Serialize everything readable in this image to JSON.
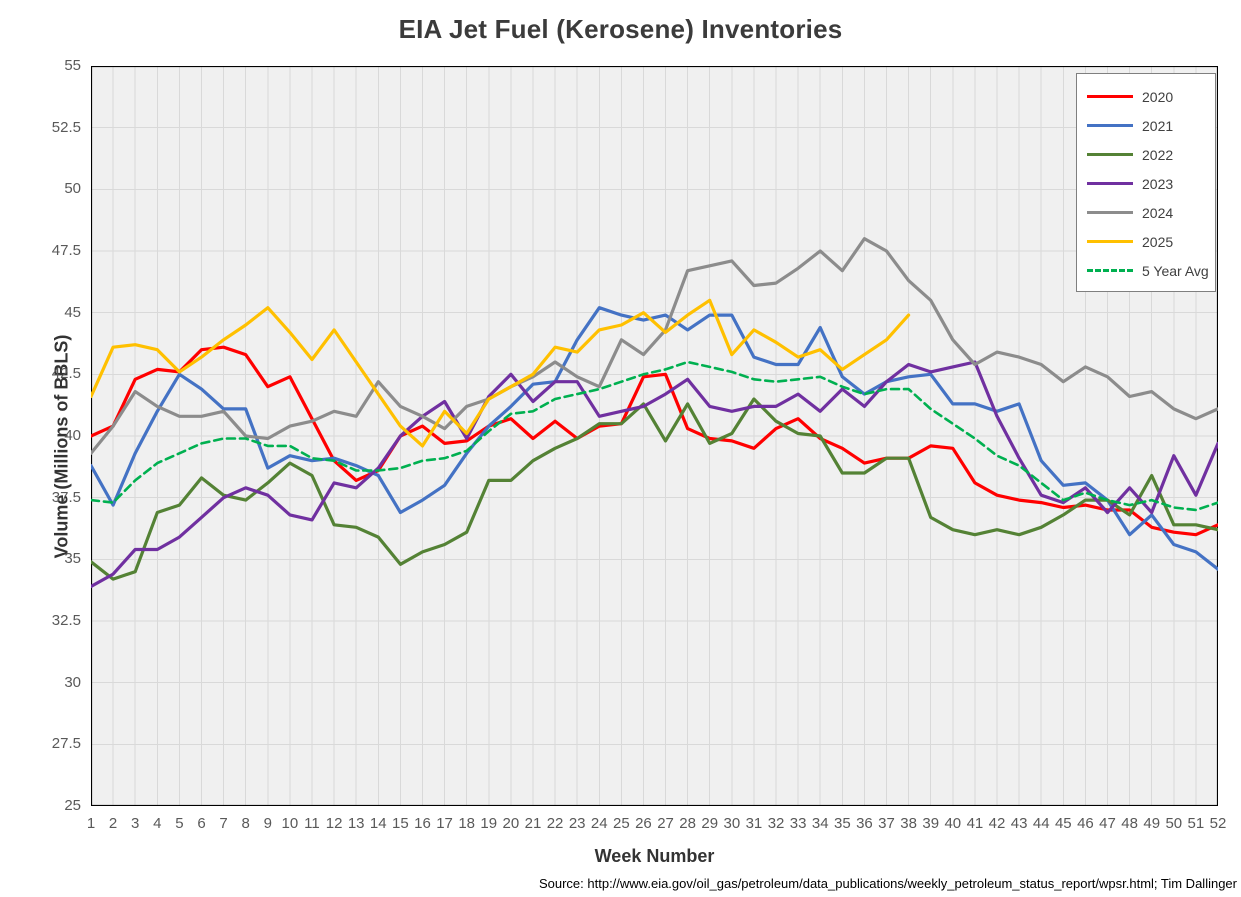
{
  "source_note": "Source: http://www.eia.gov/oil_gas/petroleum/data_publications/weekly_petroleum_status_report/wpsr.html; Tim Dallinger",
  "colors": {
    "plot_background": "#f0f0f0",
    "gridline": "#d9d9d9",
    "plot_border": "#000000",
    "title_text": "#3b3b3b",
    "axis_tick_text": "#595959",
    "axis_title_text": "#333333",
    "legend_border": "#7f7f7f"
  },
  "chart_data": {
    "type": "line",
    "title": "EIA Jet Fuel (Kerosene) Inventories",
    "xlabel": "Week Number",
    "ylabel": "Volume (Millions of BBLS)",
    "x": [
      1,
      2,
      3,
      4,
      5,
      6,
      7,
      8,
      9,
      10,
      11,
      12,
      13,
      14,
      15,
      16,
      17,
      18,
      19,
      20,
      21,
      22,
      23,
      24,
      25,
      26,
      27,
      28,
      29,
      30,
      31,
      32,
      33,
      34,
      35,
      36,
      37,
      38,
      39,
      40,
      41,
      42,
      43,
      44,
      45,
      46,
      47,
      48,
      49,
      50,
      51,
      52
    ],
    "ylim": [
      25,
      55
    ],
    "y_tick_step": 2.5,
    "y_tick_labels": [
      "55",
      "52.5",
      "50",
      "47.5",
      "45",
      "42.5",
      "40",
      "37.5",
      "35",
      "32.5",
      "30",
      "27.5",
      "25"
    ],
    "grid": true,
    "legend_position": "top-right",
    "series": [
      {
        "name": "2020",
        "color": "#ff0000",
        "dash": null,
        "values": [
          40.0,
          40.4,
          42.3,
          42.7,
          42.6,
          43.5,
          43.6,
          43.3,
          42.0,
          42.4,
          40.7,
          39.0,
          38.2,
          38.6,
          40.0,
          40.4,
          39.7,
          39.8,
          40.4,
          40.7,
          39.9,
          40.6,
          39.9,
          40.4,
          40.5,
          42.4,
          42.5,
          40.3,
          39.9,
          39.8,
          39.5,
          40.3,
          40.7,
          39.9,
          39.5,
          38.9,
          39.1,
          39.1,
          39.6,
          39.5,
          38.1,
          37.6,
          37.4,
          37.3,
          37.1,
          37.2,
          37.0,
          37.0,
          36.3,
          36.1,
          36.0,
          36.4
        ]
      },
      {
        "name": "2021",
        "color": "#4472c4",
        "dash": null,
        "values": [
          38.8,
          37.2,
          39.3,
          41.0,
          42.5,
          41.9,
          41.1,
          41.1,
          38.7,
          39.2,
          39.0,
          39.1,
          38.8,
          38.4,
          36.9,
          37.4,
          38.0,
          39.3,
          40.4,
          41.2,
          42.1,
          42.2,
          43.9,
          45.2,
          44.9,
          44.7,
          44.9,
          44.3,
          44.9,
          44.9,
          43.2,
          42.9,
          42.9,
          44.4,
          42.4,
          41.7,
          42.2,
          42.4,
          42.5,
          41.3,
          41.3,
          41.0,
          41.3,
          39.0,
          38.0,
          38.1,
          37.4,
          36.0,
          36.8,
          35.6,
          35.3,
          34.6
        ]
      },
      {
        "name": "2022",
        "color": "#548235",
        "dash": null,
        "values": [
          34.9,
          34.2,
          34.5,
          36.9,
          37.2,
          38.3,
          37.6,
          37.4,
          38.1,
          38.9,
          38.4,
          36.4,
          36.3,
          35.9,
          34.8,
          35.3,
          35.6,
          36.1,
          38.2,
          38.2,
          39.0,
          39.5,
          39.9,
          40.5,
          40.5,
          41.3,
          39.8,
          41.3,
          39.7,
          40.1,
          41.5,
          40.6,
          40.1,
          40.0,
          38.5,
          38.5,
          39.1,
          39.1,
          36.7,
          36.2,
          36.0,
          36.2,
          36.0,
          36.3,
          36.8,
          37.4,
          37.4,
          36.8,
          38.4,
          36.4,
          36.4,
          36.2
        ]
      },
      {
        "name": "2023",
        "color": "#7030a0",
        "dash": null,
        "values": [
          33.9,
          34.4,
          35.4,
          35.4,
          35.9,
          36.7,
          37.5,
          37.9,
          37.6,
          36.8,
          36.6,
          38.1,
          37.9,
          38.7,
          40.0,
          40.8,
          41.4,
          39.9,
          41.6,
          42.5,
          41.4,
          42.2,
          42.2,
          40.8,
          41.0,
          41.2,
          41.7,
          42.3,
          41.2,
          41.0,
          41.2,
          41.2,
          41.7,
          41.0,
          41.9,
          41.2,
          42.2,
          42.9,
          42.6,
          42.8,
          43.0,
          40.8,
          39.1,
          37.6,
          37.3,
          37.9,
          36.9,
          37.9,
          36.9,
          39.2,
          37.6,
          39.7
        ]
      },
      {
        "name": "2024",
        "color": "#8c8c8c",
        "dash": null,
        "values": [
          39.3,
          40.4,
          41.8,
          41.2,
          40.8,
          40.8,
          41.0,
          40.0,
          39.9,
          40.4,
          40.6,
          41.0,
          40.8,
          42.2,
          41.2,
          40.8,
          40.3,
          41.2,
          41.5,
          42.0,
          42.4,
          43.0,
          42.4,
          42.0,
          43.9,
          43.3,
          44.3,
          46.7,
          46.9,
          47.1,
          46.1,
          46.2,
          46.8,
          47.5,
          46.7,
          48.0,
          47.5,
          46.3,
          45.5,
          43.9,
          42.9,
          43.4,
          43.2,
          42.9,
          42.2,
          42.8,
          42.4,
          41.6,
          41.8,
          41.1,
          40.7,
          41.1
        ]
      },
      {
        "name": "2025",
        "color": "#ffc000",
        "dash": null,
        "values": [
          41.6,
          43.6,
          43.7,
          43.5,
          42.6,
          43.2,
          43.9,
          44.5,
          45.2,
          44.2,
          43.1,
          44.3,
          43.0,
          41.7,
          40.4,
          39.6,
          41.0,
          40.1,
          41.5,
          42.0,
          42.5,
          43.6,
          43.4,
          44.3,
          44.5,
          45.0,
          44.2,
          44.9,
          45.5,
          43.3,
          44.3,
          43.8,
          43.2,
          43.5,
          42.7,
          43.3,
          43.9,
          44.9
        ]
      },
      {
        "name": "5 Year Avg",
        "color": "#00b050",
        "dash": "8 5",
        "values": [
          37.4,
          37.3,
          38.2,
          38.9,
          39.3,
          39.7,
          39.9,
          39.9,
          39.6,
          39.6,
          39.1,
          39.0,
          38.6,
          38.6,
          38.7,
          39.0,
          39.1,
          39.4,
          40.2,
          40.9,
          41.0,
          41.5,
          41.7,
          41.9,
          42.2,
          42.5,
          42.7,
          43.0,
          42.8,
          42.6,
          42.3,
          42.2,
          42.3,
          42.4,
          42.0,
          41.7,
          41.9,
          41.9,
          41.1,
          40.5,
          39.9,
          39.2,
          38.8,
          38.1,
          37.4,
          37.7,
          37.4,
          37.2,
          37.4,
          37.1,
          37.0,
          37.3
        ]
      }
    ]
  }
}
